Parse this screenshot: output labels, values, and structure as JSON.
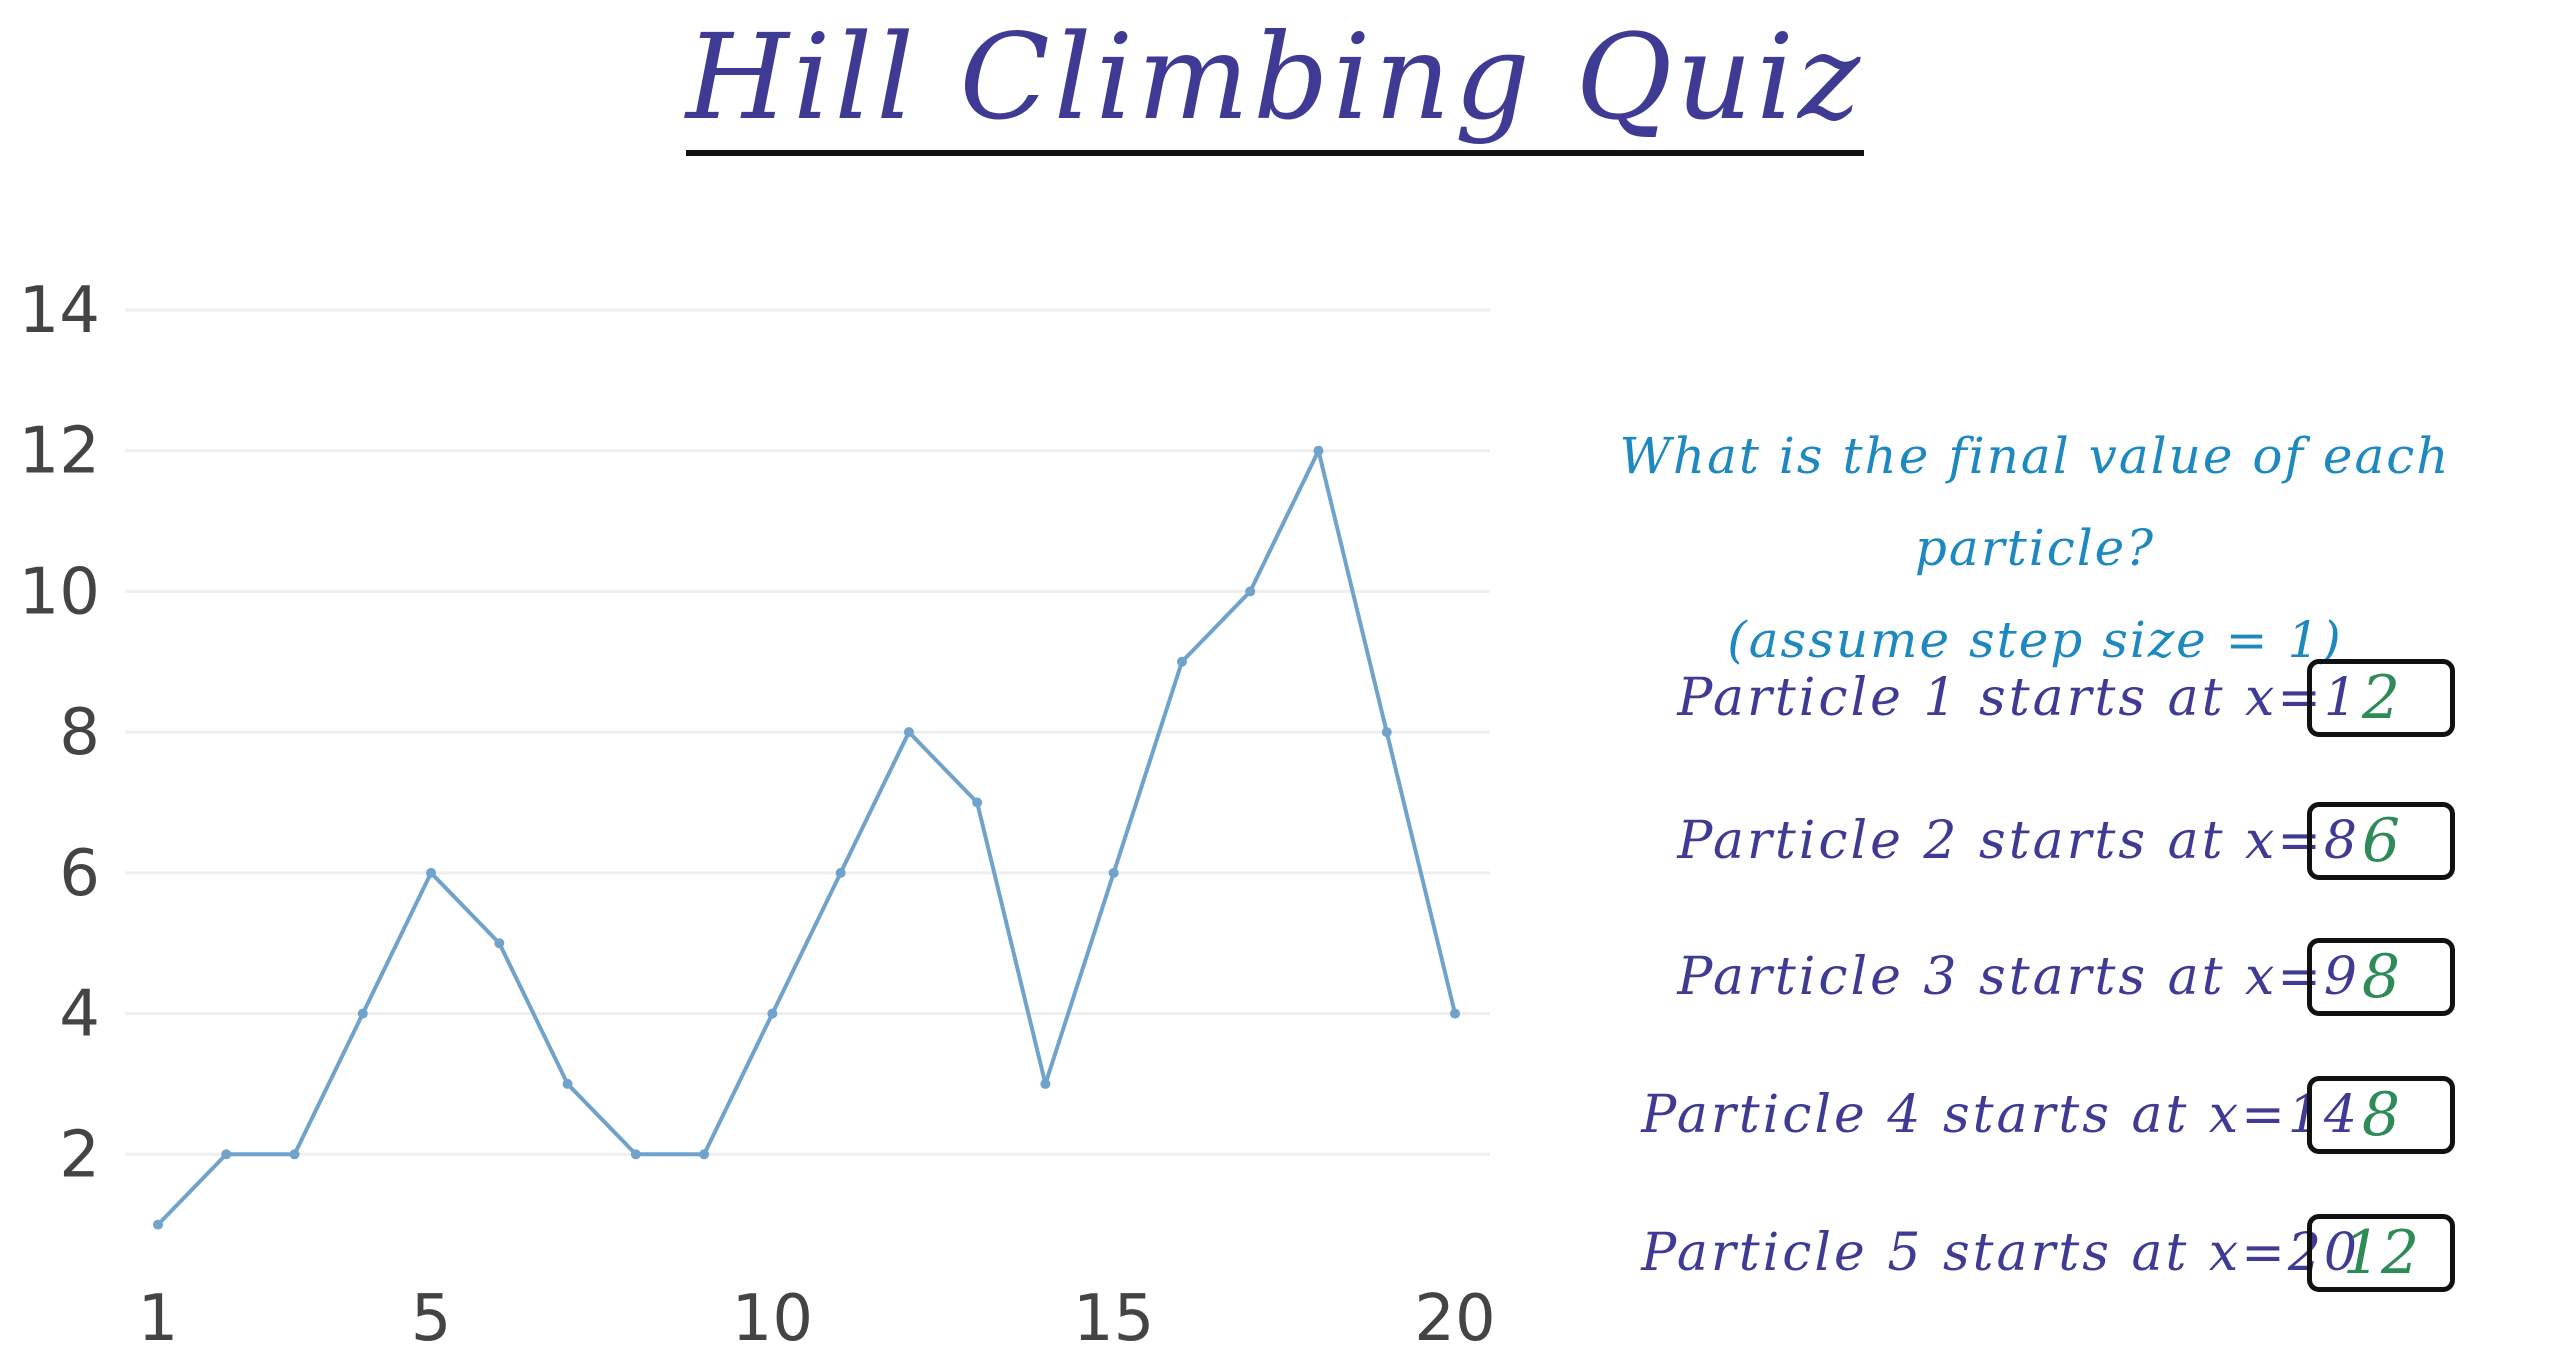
{
  "title": "Hill Climbing Quiz",
  "question": {
    "line1": "What is the final value of each particle?",
    "line2": "(assume step size = 1)"
  },
  "particles": [
    {
      "label": "Particle 1 starts at x=1",
      "answer": "2"
    },
    {
      "label": "Particle 2 starts at x=8",
      "answer": "6"
    },
    {
      "label": "Particle 3 starts at x=9",
      "answer": "8"
    },
    {
      "label": "Particle 4 starts at x=14",
      "answer": "8"
    },
    {
      "label": "Particle 5 starts at x=20",
      "answer": "12"
    }
  ],
  "colors": {
    "title": "#3f3a94",
    "question": "#1e88c0",
    "line": "#6fa3cc",
    "answer": "#2e8b57",
    "gridline": "#eeeeee"
  },
  "chart_data": {
    "type": "line",
    "x": [
      1,
      2,
      3,
      4,
      5,
      6,
      7,
      8,
      9,
      10,
      11,
      12,
      13,
      14,
      15,
      16,
      17,
      18,
      19,
      20
    ],
    "series": [
      {
        "values": [
          1,
          2,
          2,
          4,
          6,
          5,
          3,
          2,
          2,
          4,
          6,
          8,
          7,
          3,
          6,
          9,
          10,
          12,
          8,
          4
        ]
      }
    ],
    "xticks": [
      1,
      5,
      10,
      15,
      20
    ],
    "yticks": [
      2,
      4,
      6,
      8,
      10,
      12,
      14
    ],
    "xlim": [
      1,
      20
    ],
    "ylim": [
      0,
      14
    ],
    "grid": true,
    "title": "",
    "xlabel": "",
    "ylabel": ""
  }
}
